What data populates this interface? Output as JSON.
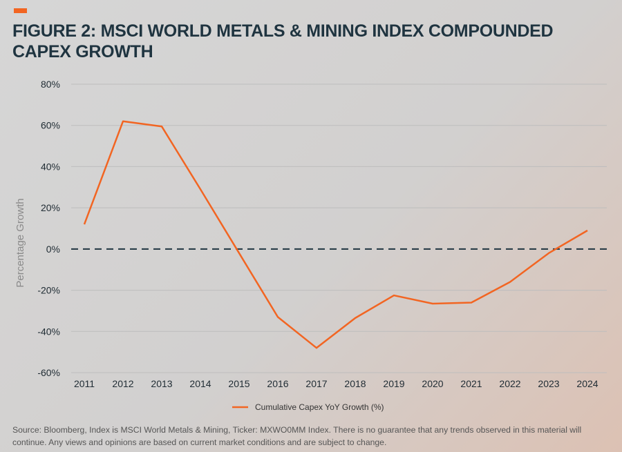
{
  "title": "FIGURE 2: MSCI WORLD METALS & MINING INDEX COMPOUNDED CAPEX GROWTH",
  "source": "Source: Bloomberg, Index is MSCI World Metals & Mining, Ticker: MXWO0MM Index. There is no guarantee that any trends observed in this material will continue. Any views and opinions are based on current market conditions and are subject to change.",
  "colors": {
    "series": "#f26522",
    "zero_line": "#1f3440",
    "grid": "#bdbdbd",
    "accent": "#f26522"
  },
  "chart_data": {
    "type": "line",
    "title": "FIGURE 2: MSCI WORLD METALS & MINING INDEX COMPOUNDED CAPEX GROWTH",
    "xlabel": "",
    "ylabel": "Percentage Growth",
    "ylim": [
      -60,
      80
    ],
    "yticks": [
      80,
      60,
      40,
      20,
      0,
      -20,
      -40,
      -60
    ],
    "ytick_labels": [
      "80%",
      "60%",
      "40%",
      "20%",
      "0%",
      "-20%",
      "-40%",
      "-60%"
    ],
    "categories": [
      "2011",
      "2012",
      "2013",
      "2014",
      "2015",
      "2016",
      "2017",
      "2018",
      "2019",
      "2020",
      "2021",
      "2022",
      "2023",
      "2024"
    ],
    "series": [
      {
        "name": "Cumulative Capex YoY Growth (%)",
        "values": [
          12,
          62,
          59.5,
          29,
          -2,
          -33,
          -48,
          -33.5,
          -22.5,
          -26.5,
          -26,
          -16,
          -2,
          9
        ]
      }
    ],
    "reference_line": {
      "y": 0,
      "style": "dashed"
    },
    "legend": "bottom-center",
    "grid": true
  }
}
